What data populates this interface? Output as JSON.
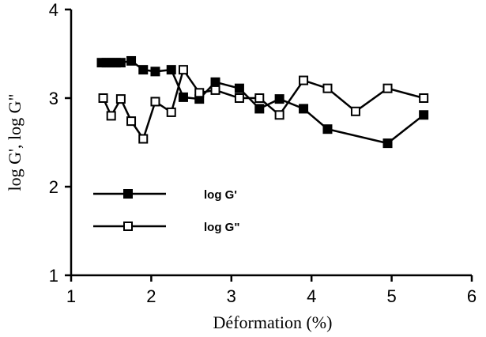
{
  "chart_data": {
    "type": "line",
    "title": "",
    "xlabel": "Déformation (%)",
    "ylabel": "log G', log G\"",
    "xlim": [
      1,
      6
    ],
    "ylim": [
      1,
      4
    ],
    "xticks": [
      1,
      2,
      3,
      4,
      5,
      6
    ],
    "yticks": [
      1,
      2,
      3,
      4
    ],
    "xtick_labels": [
      "1",
      "2",
      "3",
      "4",
      "5",
      "6"
    ],
    "ytick_labels": [
      "1",
      "2",
      "3",
      "4"
    ],
    "grid": false,
    "legend_position": "lower-left",
    "series": [
      {
        "name": "log G'",
        "marker": "filled-square",
        "color": "#000000",
        "x": [
          1.38,
          1.44,
          1.5,
          1.56,
          1.62,
          1.75,
          1.9,
          2.05,
          2.25,
          2.4,
          2.6,
          2.8,
          3.1,
          3.35,
          3.6,
          3.9,
          4.2,
          4.95,
          5.4
        ],
        "y": [
          3.4,
          3.4,
          3.4,
          3.4,
          3.4,
          3.42,
          3.32,
          3.3,
          3.32,
          3.01,
          2.99,
          3.18,
          3.11,
          2.88,
          2.99,
          2.88,
          2.65,
          2.49,
          2.81
        ]
      },
      {
        "name": "log G\"",
        "marker": "open-square",
        "color": "#000000",
        "x": [
          1.4,
          1.5,
          1.62,
          1.75,
          1.9,
          2.05,
          2.25,
          2.4,
          2.6,
          2.8,
          3.1,
          3.35,
          3.6,
          3.9,
          4.2,
          4.55,
          4.95,
          5.4
        ],
        "y": [
          3.0,
          2.8,
          2.99,
          2.74,
          2.54,
          2.96,
          2.84,
          3.32,
          3.06,
          3.09,
          3.0,
          3.0,
          2.81,
          3.2,
          3.11,
          2.85,
          3.11,
          3.0
        ]
      }
    ]
  }
}
